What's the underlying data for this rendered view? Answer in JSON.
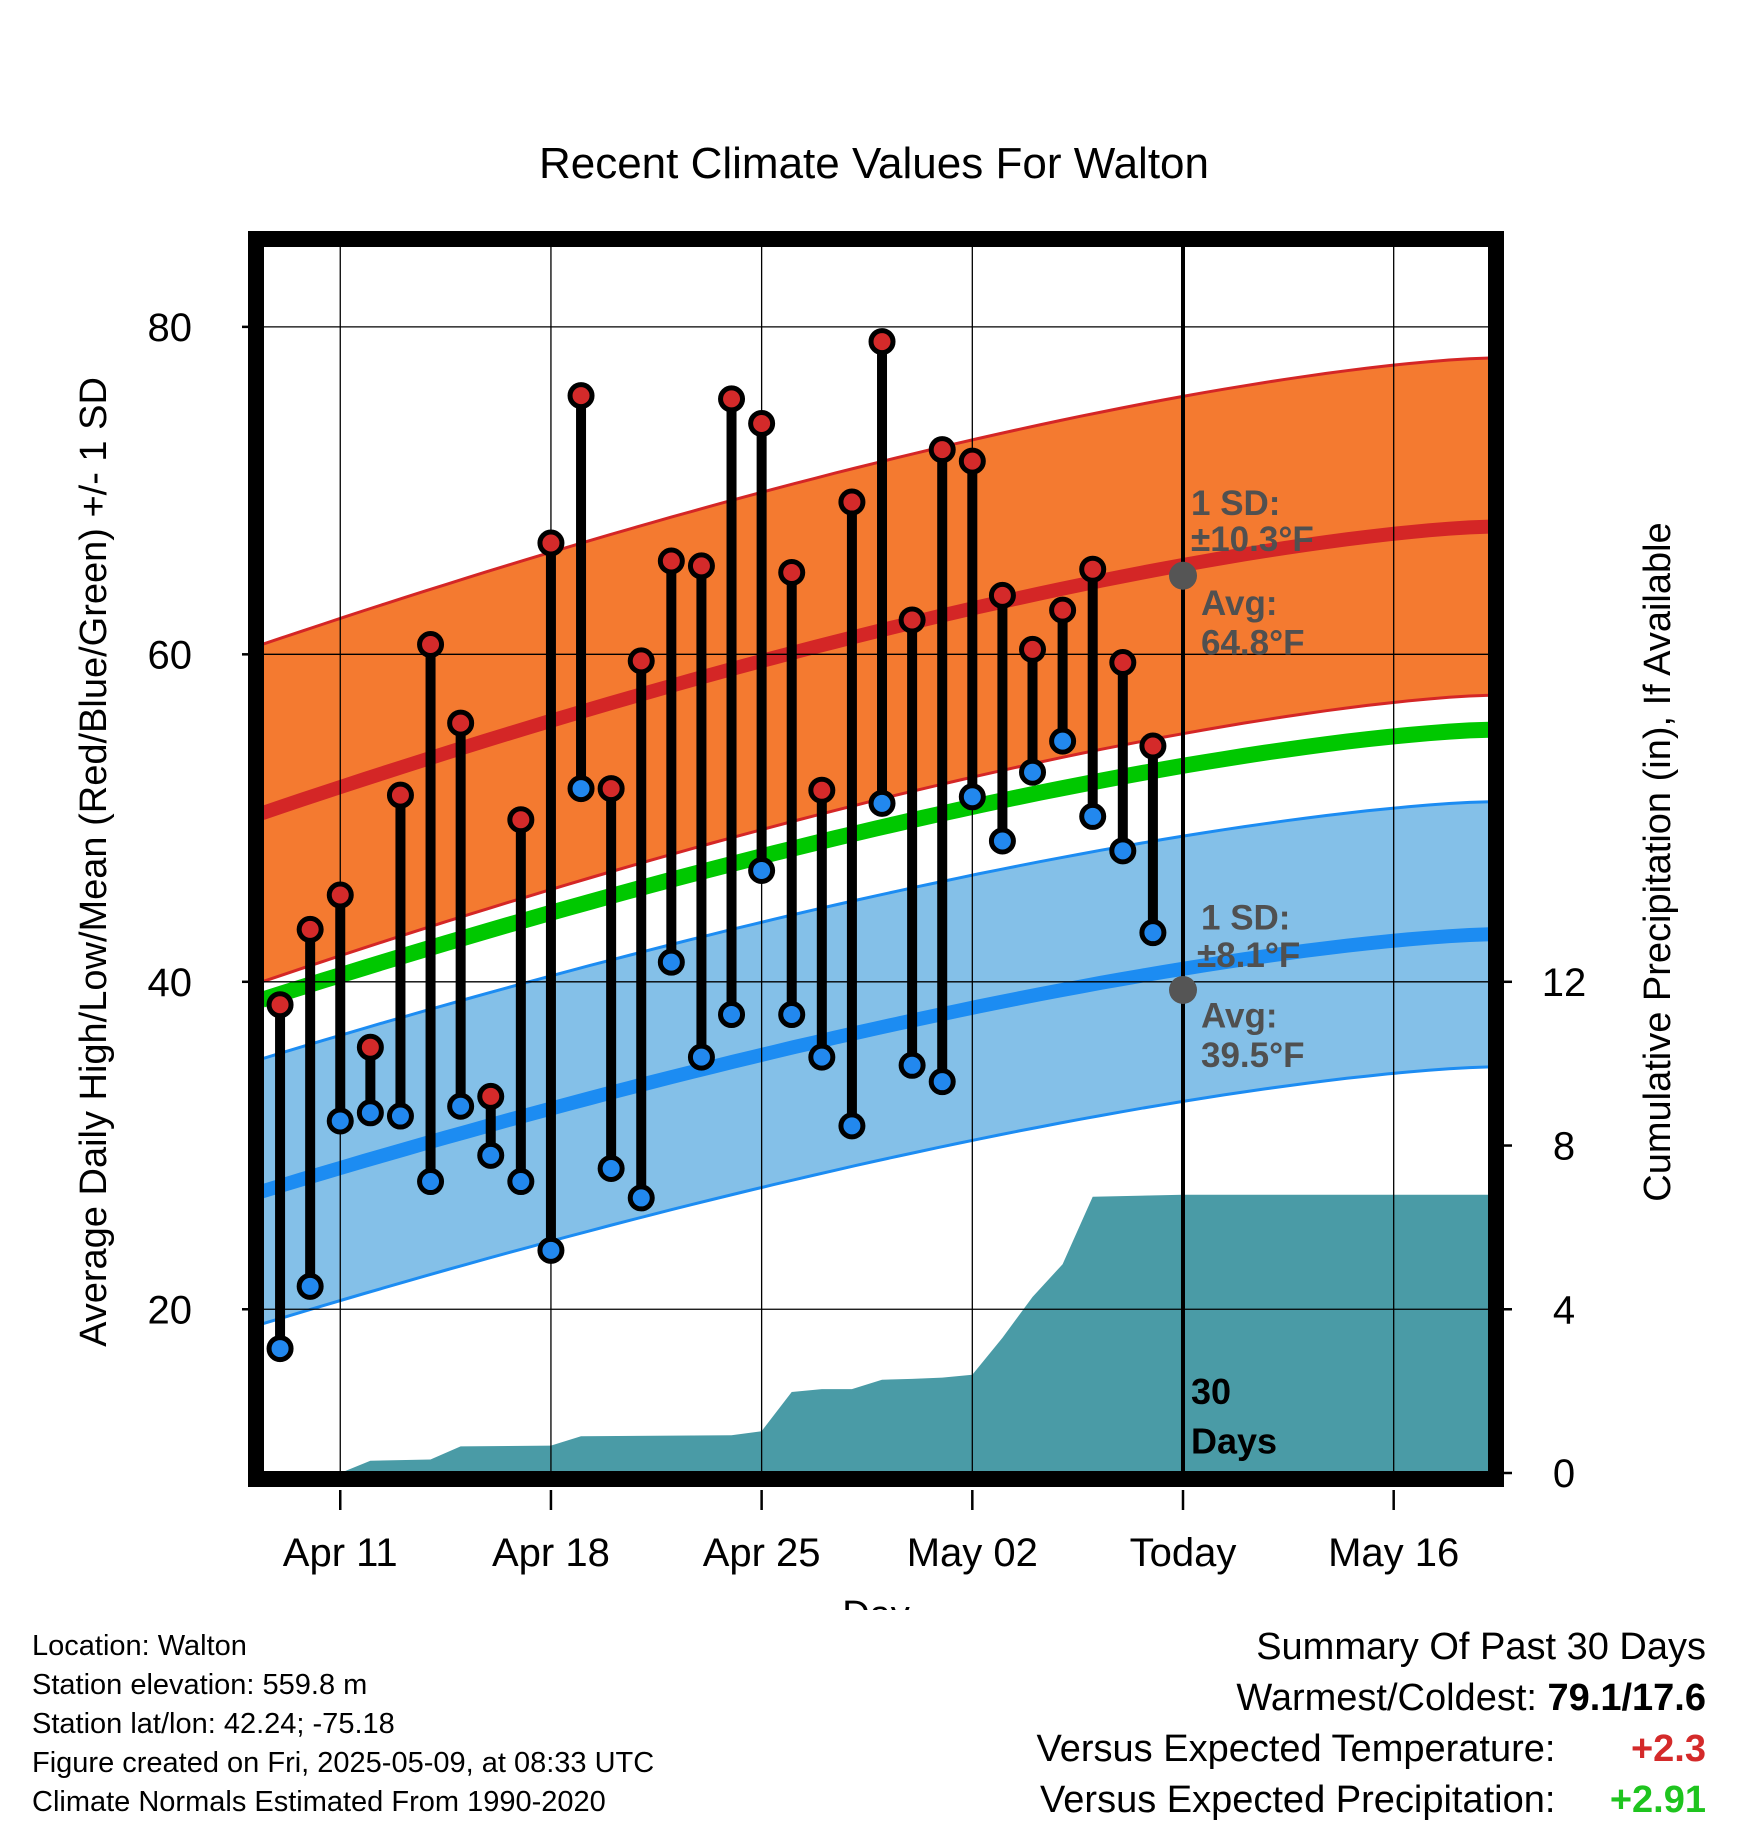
{
  "chart_data": {
    "type": "line",
    "title": "Recent Climate Values For Walton",
    "xlabel": "Day",
    "ylabel": "Average Daily High/Low/Mean (Red/Blue/Green) +/- 1 SD",
    "y2label": "Cumulative Precipitation (in), If Available",
    "ylim": [
      10,
      85
    ],
    "y2lim": [
      0,
      30
    ],
    "xlim": [
      -0.6,
      40.2
    ],
    "xticks": [
      {
        "x": 2,
        "label": "Apr 11"
      },
      {
        "x": 9,
        "label": "Apr 18"
      },
      {
        "x": 16,
        "label": "Apr 25"
      },
      {
        "x": 23,
        "label": "May 02"
      },
      {
        "x": 30,
        "label": "Today"
      },
      {
        "x": 37,
        "label": "May 16"
      }
    ],
    "yticks": [
      20,
      40,
      60,
      80
    ],
    "y2ticks": [
      0,
      4,
      8,
      12
    ],
    "today_x": 30,
    "days": [
      0,
      1,
      2,
      3,
      4,
      5,
      6,
      7,
      8,
      9,
      10,
      11,
      12,
      13,
      14,
      15,
      16,
      17,
      18,
      19,
      20,
      21,
      22,
      23,
      24,
      25,
      26,
      27,
      28,
      29
    ],
    "highs": [
      38.6,
      43.2,
      45.3,
      36.0,
      51.4,
      60.6,
      55.8,
      33.0,
      49.9,
      66.8,
      75.8,
      51.8,
      59.6,
      65.7,
      65.4,
      75.6,
      74.1,
      65.0,
      51.7,
      69.3,
      79.1,
      62.1,
      72.5,
      71.8,
      63.6,
      60.3,
      62.7,
      65.2,
      59.5,
      54.4
    ],
    "lows": [
      17.6,
      21.4,
      31.5,
      32.0,
      31.8,
      27.8,
      32.4,
      29.4,
      27.8,
      23.6,
      51.8,
      28.6,
      26.8,
      41.2,
      35.4,
      38.0,
      46.8,
      38.0,
      35.4,
      31.2,
      50.9,
      34.9,
      33.9,
      51.3,
      48.6,
      52.8,
      54.7,
      50.1,
      48.0,
      43.0
    ],
    "normal_x": [
      -0.6,
      40.2
    ],
    "normal_high": [
      50.3,
      67.8
    ],
    "normal_low": [
      27.2,
      42.9
    ],
    "normal_mean": [
      38.9,
      55.4
    ],
    "sd_high": 10.3,
    "sd_low": 8.1,
    "precip_x": [
      -0.6,
      2,
      3,
      5,
      6,
      9,
      10,
      15,
      16,
      17,
      18,
      19,
      20,
      21,
      22,
      23,
      24,
      25,
      26,
      27,
      30,
      40.2
    ],
    "precip": [
      0.0,
      0.0,
      0.3,
      0.33,
      0.65,
      0.67,
      0.9,
      0.92,
      1.02,
      1.98,
      2.05,
      2.05,
      2.28,
      2.3,
      2.33,
      2.4,
      3.3,
      4.3,
      5.1,
      6.75,
      6.8,
      6.8
    ],
    "annotations": {
      "high_sd": "1 SD:",
      "high_sd_val": "±10.3°F",
      "high_avg": "Avg:",
      "high_avg_val": "64.8°F",
      "low_sd": "1 SD:",
      "low_sd_val": "±8.1°F",
      "low_avg": "Avg:",
      "low_avg_val": "39.5°F",
      "days_num": "30",
      "days_word": "Days"
    },
    "today_high_avg": 64.8,
    "today_low_avg": 39.5
  },
  "colors": {
    "high_band": "#f47a30",
    "high_line": "#d42626",
    "low_band": "#84c0e8",
    "low_line": "#1c8cf2",
    "mean_line": "#00c800",
    "precip": "#4a9ba6",
    "high_dot": "#d42a2a",
    "low_dot": "#2288ee",
    "annotation": "#505050"
  },
  "info": {
    "location": "Location: Walton",
    "elevation": "Station elevation: 559.8 m",
    "latlon": "Station lat/lon: 42.24; -75.18",
    "created": "Figure created on Fri, 2025-05-09, at 08:33 UTC",
    "normals": "Climate Normals Estimated From 1990-2020"
  },
  "summary": {
    "heading": "Summary Of Past 30 Days",
    "warm_label": "Warmest/Coldest:",
    "warm_value": "79.1/17.6",
    "temp_label": "Versus Expected Temperature:",
    "temp_value": "+2.3",
    "precip_label": "Versus Expected Precipitation:",
    "precip_value": "+2.91"
  }
}
